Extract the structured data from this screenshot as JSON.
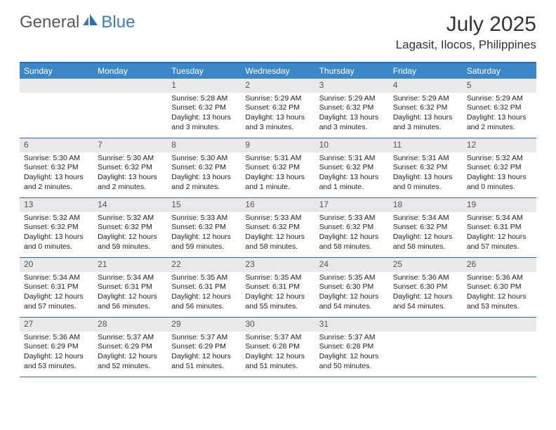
{
  "logo": {
    "general": "General",
    "blue": "Blue"
  },
  "title": "July 2025",
  "location": "Lagasit, Ilocos, Philippines",
  "colors": {
    "header_bar": "#3b87c8",
    "border": "#2a6db5",
    "daynum_bg": "#e9e9e9",
    "logo_gray": "#5a5a5a",
    "logo_blue": "#3b7bbf"
  },
  "weekdays": [
    "Sunday",
    "Monday",
    "Tuesday",
    "Wednesday",
    "Thursday",
    "Friday",
    "Saturday"
  ],
  "weeks": [
    [
      null,
      null,
      {
        "n": "1",
        "sunrise": "5:28 AM",
        "sunset": "6:32 PM",
        "daylight": "13 hours and 3 minutes."
      },
      {
        "n": "2",
        "sunrise": "5:29 AM",
        "sunset": "6:32 PM",
        "daylight": "13 hours and 3 minutes."
      },
      {
        "n": "3",
        "sunrise": "5:29 AM",
        "sunset": "6:32 PM",
        "daylight": "13 hours and 3 minutes."
      },
      {
        "n": "4",
        "sunrise": "5:29 AM",
        "sunset": "6:32 PM",
        "daylight": "13 hours and 3 minutes."
      },
      {
        "n": "5",
        "sunrise": "5:29 AM",
        "sunset": "6:32 PM",
        "daylight": "13 hours and 2 minutes."
      }
    ],
    [
      {
        "n": "6",
        "sunrise": "5:30 AM",
        "sunset": "6:32 PM",
        "daylight": "13 hours and 2 minutes."
      },
      {
        "n": "7",
        "sunrise": "5:30 AM",
        "sunset": "6:32 PM",
        "daylight": "13 hours and 2 minutes."
      },
      {
        "n": "8",
        "sunrise": "5:30 AM",
        "sunset": "6:32 PM",
        "daylight": "13 hours and 2 minutes."
      },
      {
        "n": "9",
        "sunrise": "5:31 AM",
        "sunset": "6:32 PM",
        "daylight": "13 hours and 1 minute."
      },
      {
        "n": "10",
        "sunrise": "5:31 AM",
        "sunset": "6:32 PM",
        "daylight": "13 hours and 1 minute."
      },
      {
        "n": "11",
        "sunrise": "5:31 AM",
        "sunset": "6:32 PM",
        "daylight": "13 hours and 0 minutes."
      },
      {
        "n": "12",
        "sunrise": "5:32 AM",
        "sunset": "6:32 PM",
        "daylight": "13 hours and 0 minutes."
      }
    ],
    [
      {
        "n": "13",
        "sunrise": "5:32 AM",
        "sunset": "6:32 PM",
        "daylight": "13 hours and 0 minutes."
      },
      {
        "n": "14",
        "sunrise": "5:32 AM",
        "sunset": "6:32 PM",
        "daylight": "12 hours and 59 minutes."
      },
      {
        "n": "15",
        "sunrise": "5:33 AM",
        "sunset": "6:32 PM",
        "daylight": "12 hours and 59 minutes."
      },
      {
        "n": "16",
        "sunrise": "5:33 AM",
        "sunset": "6:32 PM",
        "daylight": "12 hours and 58 minutes."
      },
      {
        "n": "17",
        "sunrise": "5:33 AM",
        "sunset": "6:32 PM",
        "daylight": "12 hours and 58 minutes."
      },
      {
        "n": "18",
        "sunrise": "5:34 AM",
        "sunset": "6:32 PM",
        "daylight": "12 hours and 58 minutes."
      },
      {
        "n": "19",
        "sunrise": "5:34 AM",
        "sunset": "6:31 PM",
        "daylight": "12 hours and 57 minutes."
      }
    ],
    [
      {
        "n": "20",
        "sunrise": "5:34 AM",
        "sunset": "6:31 PM",
        "daylight": "12 hours and 57 minutes."
      },
      {
        "n": "21",
        "sunrise": "5:34 AM",
        "sunset": "6:31 PM",
        "daylight": "12 hours and 56 minutes."
      },
      {
        "n": "22",
        "sunrise": "5:35 AM",
        "sunset": "6:31 PM",
        "daylight": "12 hours and 56 minutes."
      },
      {
        "n": "23",
        "sunrise": "5:35 AM",
        "sunset": "6:31 PM",
        "daylight": "12 hours and 55 minutes."
      },
      {
        "n": "24",
        "sunrise": "5:35 AM",
        "sunset": "6:30 PM",
        "daylight": "12 hours and 54 minutes."
      },
      {
        "n": "25",
        "sunrise": "5:36 AM",
        "sunset": "6:30 PM",
        "daylight": "12 hours and 54 minutes."
      },
      {
        "n": "26",
        "sunrise": "5:36 AM",
        "sunset": "6:30 PM",
        "daylight": "12 hours and 53 minutes."
      }
    ],
    [
      {
        "n": "27",
        "sunrise": "5:36 AM",
        "sunset": "6:29 PM",
        "daylight": "12 hours and 53 minutes."
      },
      {
        "n": "28",
        "sunrise": "5:37 AM",
        "sunset": "6:29 PM",
        "daylight": "12 hours and 52 minutes."
      },
      {
        "n": "29",
        "sunrise": "5:37 AM",
        "sunset": "6:29 PM",
        "daylight": "12 hours and 51 minutes."
      },
      {
        "n": "30",
        "sunrise": "5:37 AM",
        "sunset": "6:28 PM",
        "daylight": "12 hours and 51 minutes."
      },
      {
        "n": "31",
        "sunrise": "5:37 AM",
        "sunset": "6:28 PM",
        "daylight": "12 hours and 50 minutes."
      },
      null,
      null
    ]
  ],
  "labels": {
    "sunrise": "Sunrise:",
    "sunset": "Sunset:",
    "daylight": "Daylight:"
  }
}
